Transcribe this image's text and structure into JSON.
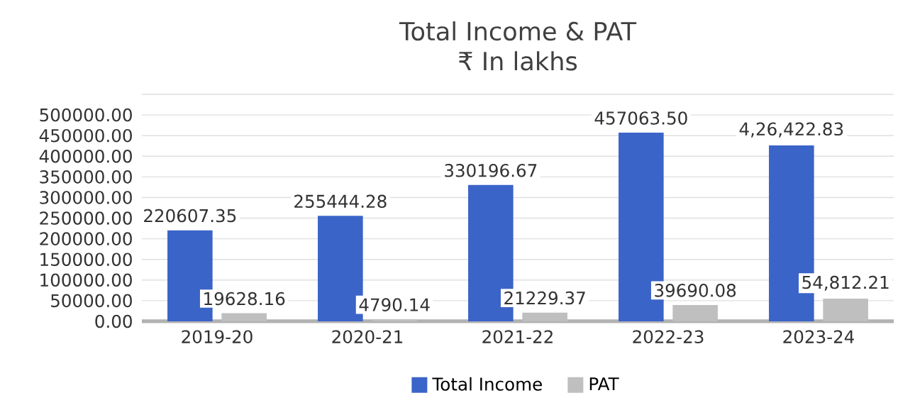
{
  "chart_data": {
    "type": "bar",
    "title": "Total Income & PAT",
    "subtitle": "₹ In lakhs",
    "categories": [
      "2019-20",
      "2020-21",
      "2021-22",
      "2022-23",
      "2023-24"
    ],
    "series": [
      {
        "name": "Total Income",
        "color": "#3b64c8",
        "values": [
          220607.35,
          255444.28,
          330196.67,
          457063.5,
          426422.83
        ],
        "value_labels": [
          "220607.35",
          "255444.28",
          "330196.67",
          "457063.50",
          "4,26,422.83"
        ]
      },
      {
        "name": "PAT",
        "color": "#bfbfbf",
        "values": [
          19628.16,
          4790.14,
          21229.37,
          39690.08,
          54812.21
        ],
        "value_labels": [
          "19628.16",
          "4790.14",
          "21229.37",
          "39690.08",
          "54,812.21"
        ]
      }
    ],
    "ylim": [
      0,
      550000
    ],
    "yticks": [
      {
        "value": 0,
        "label": "0.00"
      },
      {
        "value": 50000,
        "label": "50000.00"
      },
      {
        "value": 100000,
        "label": "100000.00"
      },
      {
        "value": 150000,
        "label": "150000.00"
      },
      {
        "value": 200000,
        "label": "200000.00"
      },
      {
        "value": 250000,
        "label": "250000.00"
      },
      {
        "value": 300000,
        "label": "300000.00"
      },
      {
        "value": 350000,
        "label": "350000.00"
      },
      {
        "value": 400000,
        "label": "400000.00"
      },
      {
        "value": 450000,
        "label": "450000.00"
      },
      {
        "value": 500000,
        "label": "500000.00"
      },
      {
        "value": 550000,
        "label": null
      }
    ],
    "grid": "y",
    "legend": "bottom"
  }
}
